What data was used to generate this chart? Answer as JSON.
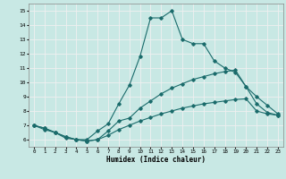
{
  "xlabel": "Humidex (Indice chaleur)",
  "xlim": [
    -0.5,
    23.5
  ],
  "ylim": [
    5.5,
    15.5
  ],
  "xticks": [
    0,
    1,
    2,
    3,
    4,
    5,
    6,
    7,
    8,
    9,
    10,
    11,
    12,
    13,
    14,
    15,
    16,
    17,
    18,
    19,
    20,
    21,
    22,
    23
  ],
  "yticks": [
    6,
    7,
    8,
    9,
    10,
    11,
    12,
    13,
    14,
    15
  ],
  "bg_color": "#c8e8e4",
  "grid_color": "#f0f0f0",
  "line_color": "#1a6b6b",
  "lines": [
    {
      "x": [
        0,
        1,
        2,
        3,
        4,
        5,
        6,
        7,
        8,
        9,
        10,
        11,
        12,
        13,
        14,
        15,
        16,
        17,
        18,
        19,
        20,
        21,
        22,
        23
      ],
      "y": [
        7.0,
        6.7,
        6.5,
        6.1,
        6.0,
        6.0,
        6.6,
        7.1,
        8.5,
        9.8,
        11.8,
        14.5,
        14.5,
        15.0,
        13.0,
        12.7,
        12.7,
        11.5,
        11.0,
        10.7,
        9.7,
        8.5,
        7.9,
        7.7
      ]
    },
    {
      "x": [
        0,
        1,
        2,
        3,
        4,
        5,
        6,
        7,
        8,
        9,
        10,
        11,
        12,
        13,
        14,
        15,
        16,
        17,
        18,
        19,
        20,
        21,
        22,
        23
      ],
      "y": [
        7.0,
        6.8,
        6.5,
        6.2,
        6.0,
        5.9,
        6.0,
        6.6,
        7.3,
        7.5,
        8.2,
        8.7,
        9.2,
        9.6,
        9.9,
        10.2,
        10.4,
        10.6,
        10.75,
        10.85,
        9.7,
        9.0,
        8.4,
        7.8
      ]
    },
    {
      "x": [
        0,
        1,
        2,
        3,
        4,
        5,
        6,
        7,
        8,
        9,
        10,
        11,
        12,
        13,
        14,
        15,
        16,
        17,
        18,
        19,
        20,
        21,
        22,
        23
      ],
      "y": [
        7.0,
        6.8,
        6.5,
        6.2,
        6.0,
        5.9,
        6.0,
        6.3,
        6.7,
        7.0,
        7.3,
        7.55,
        7.8,
        8.0,
        8.2,
        8.35,
        8.5,
        8.6,
        8.7,
        8.8,
        8.85,
        8.0,
        7.8,
        7.7
      ]
    }
  ]
}
